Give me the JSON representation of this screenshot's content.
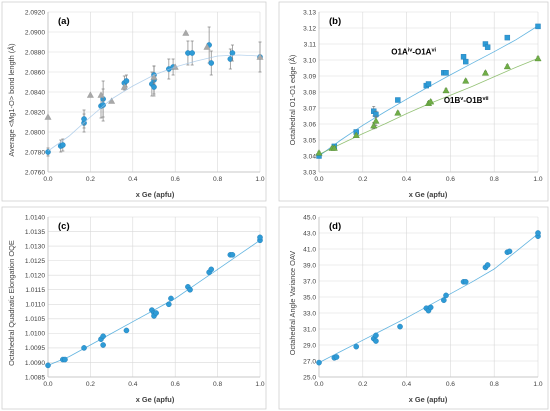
{
  "chart_data": [
    {
      "type": "scatter",
      "label": "(a)",
      "xlabel": "x Ge (apfu)",
      "ylabel": "Average <Mg1-O> bond length (Å)",
      "xlim": [
        0,
        1
      ],
      "ylim": [
        2.076,
        2.092
      ],
      "xstep": 0.2,
      "ystep": 0.002,
      "ydec": 4,
      "grid": true,
      "colors": {
        "primary": "#2E9BD6",
        "secondary": "#A8A8A8",
        "fit": "#9DC3E6"
      },
      "series": [
        {
          "marker": "circle",
          "color": "#2E9BD6",
          "x": [
            0.0,
            0.06,
            0.07,
            0.17,
            0.17,
            0.25,
            0.26,
            0.26,
            0.36,
            0.37,
            0.49,
            0.5,
            0.5,
            0.5,
            0.57,
            0.59,
            0.66,
            0.68,
            0.76,
            0.77,
            0.86,
            0.87,
            1.0
          ],
          "y": [
            2.078,
            2.0786,
            2.0787,
            2.0809,
            2.0813,
            2.0826,
            2.0833,
            2.0827,
            2.0849,
            2.0851,
            2.0848,
            2.0852,
            2.0857,
            2.0845,
            2.0863,
            2.0865,
            2.0879,
            2.0879,
            2.0887,
            2.0869,
            2.0873,
            2.0879,
            2.0875
          ],
          "err": [
            0.0004,
            0.0006,
            0.0006,
            0.0009,
            0.0009,
            0.0012,
            0.0018,
            0.0016,
            0.0007,
            0.0006,
            0.0012,
            0.0014,
            0.0009,
            0.0009,
            0.001,
            0.0008,
            0.0012,
            0.0012,
            0.0018,
            0.0012,
            0.001,
            0.0008,
            0.0015
          ]
        },
        {
          "marker": "triangle",
          "color": "#A8A8A8",
          "x": [
            0.0,
            0.2,
            0.25,
            0.3,
            0.36,
            0.5,
            0.6,
            0.65,
            0.75,
            1.0
          ],
          "y": [
            2.0815,
            2.0837,
            2.0837,
            2.0831,
            2.0845,
            2.0855,
            2.0865,
            2.0899,
            2.0885,
            2.0875
          ]
        },
        {
          "fit": true,
          "color": "#9DC3E6",
          "x": [
            0.0,
            0.1,
            0.2,
            0.3,
            0.4,
            0.5,
            0.6,
            0.7,
            0.8,
            0.9,
            1.0
          ],
          "y": [
            2.0781,
            2.0796,
            2.0815,
            2.0833,
            2.0846,
            2.0857,
            2.0865,
            2.0871,
            2.0876,
            2.0877,
            2.0876
          ]
        }
      ]
    },
    {
      "type": "scatter",
      "label": "(b)",
      "xlabel": "x Ge (apfu)",
      "ylabel": "Octahedral O1-O1 edge (Å)",
      "xlim": [
        0,
        1
      ],
      "ylim": [
        3.03,
        3.13
      ],
      "xstep": 0.2,
      "ystep": 0.01,
      "ydec": 2,
      "grid": true,
      "annotations": [
        {
          "text": "O1A",
          "sup": "iv",
          "text2": "-O1A",
          "sup2": "vi",
          "x": 0.33,
          "y": 3.1035
        },
        {
          "text": "O1B",
          "sup": "v",
          "text2": "-O1B",
          "sup2": "vii",
          "x": 0.57,
          "y": 3.073
        }
      ],
      "series": [
        {
          "name": "O1A-O1A",
          "marker": "square",
          "color": "#2E9BD6",
          "x": [
            0.0,
            0.07,
            0.17,
            0.25,
            0.26,
            0.36,
            0.49,
            0.5,
            0.57,
            0.58,
            0.66,
            0.67,
            0.76,
            0.77,
            0.86,
            1.0
          ],
          "y": [
            3.04,
            3.046,
            3.055,
            3.068,
            3.066,
            3.075,
            3.084,
            3.085,
            3.092,
            3.092,
            3.102,
            3.099,
            3.11,
            3.108,
            3.114,
            3.121
          ],
          "err": [
            0.001,
            0.001,
            0.001,
            0.003,
            0.002,
            0.001,
            0.001,
            0.001,
            0.001,
            0.001,
            0.001,
            0.001,
            0.001,
            0.001,
            0.001,
            0.001
          ],
          "fit": [
            3.04,
            3.05,
            3.0592,
            3.0675,
            3.0755,
            3.0832,
            3.0907,
            3.098,
            3.1052,
            3.1127,
            3.1213
          ]
        },
        {
          "name": "O1B-O1B",
          "marker": "triangle",
          "color": "#70AD47",
          "x": [
            0.0,
            0.06,
            0.07,
            0.17,
            0.25,
            0.26,
            0.36,
            0.5,
            0.51,
            0.58,
            0.67,
            0.76,
            0.86,
            1.0
          ],
          "y": [
            3.042,
            3.045,
            3.045,
            3.053,
            3.059,
            3.062,
            3.067,
            3.073,
            3.074,
            3.081,
            3.087,
            3.092,
            3.096,
            3.101
          ],
          "err": [
            0.001,
            0.001,
            0.001,
            0.001,
            0.002,
            0.003,
            0.001,
            0.001,
            0.001,
            0.001,
            0.001,
            0.001,
            0.001,
            0.001
          ],
          "fit": [
            3.041,
            3.0475,
            3.054,
            3.06,
            3.0665,
            3.0725,
            3.078,
            3.0835,
            3.0895,
            3.0955,
            3.101
          ]
        }
      ]
    },
    {
      "type": "scatter",
      "label": "(c)",
      "xlabel": "x Ge (apfu)",
      "ylabel": "Octahedral Quadratic Elongation OQE",
      "xlim": [
        0,
        1
      ],
      "ylim": [
        1.0085,
        1.014
      ],
      "xstep": 0.2,
      "ystep": 0.0005,
      "ydec": 4,
      "grid": true,
      "series": [
        {
          "marker": "circle",
          "color": "#2E9BD6",
          "x": [
            0.0,
            0.07,
            0.08,
            0.17,
            0.25,
            0.26,
            0.26,
            0.37,
            0.49,
            0.5,
            0.5,
            0.51,
            0.57,
            0.58,
            0.66,
            0.67,
            0.76,
            0.77,
            0.86,
            0.87,
            1.0,
            1.0
          ],
          "y": [
            1.0089,
            1.0091,
            1.0091,
            1.0095,
            1.0098,
            1.0099,
            1.0096,
            1.0101,
            1.0108,
            1.0107,
            1.0106,
            1.0107,
            1.011,
            1.0112,
            1.0116,
            1.0115,
            1.0121,
            1.0122,
            1.0127,
            1.0127,
            1.0132,
            1.0133
          ],
          "fit": [
            1.0089,
            1.0092,
            1.0096,
            1.01,
            1.0104,
            1.0108,
            1.0112,
            1.0117,
            1.0122,
            1.0127,
            1.0132
          ]
        }
      ]
    },
    {
      "type": "scatter",
      "label": "(d)",
      "xlabel": "x Ge (apfu)",
      "ylabel": "Octahedral Angle Variance OAV",
      "xlim": [
        0,
        1
      ],
      "ylim": [
        25.0,
        45.0
      ],
      "xstep": 0.2,
      "ystep": 2,
      "ydec": 1,
      "grid": true,
      "series": [
        {
          "marker": "circle",
          "color": "#2E9BD6",
          "x": [
            0.0,
            0.07,
            0.08,
            0.17,
            0.25,
            0.26,
            0.26,
            0.37,
            0.49,
            0.5,
            0.51,
            0.57,
            0.58,
            0.66,
            0.67,
            0.76,
            0.77,
            0.86,
            0.87,
            1.0,
            1.0
          ],
          "y": [
            26.8,
            27.4,
            27.5,
            28.8,
            29.8,
            30.2,
            29.5,
            31.3,
            33.6,
            33.3,
            33.7,
            34.6,
            35.2,
            36.9,
            36.9,
            38.7,
            39.0,
            40.6,
            40.7,
            42.6,
            43.0
          ],
          "fit": [
            26.8,
            28.2,
            29.6,
            31.0,
            32.4,
            33.9,
            35.4,
            36.9,
            38.5,
            40.7,
            42.9
          ]
        }
      ]
    }
  ]
}
